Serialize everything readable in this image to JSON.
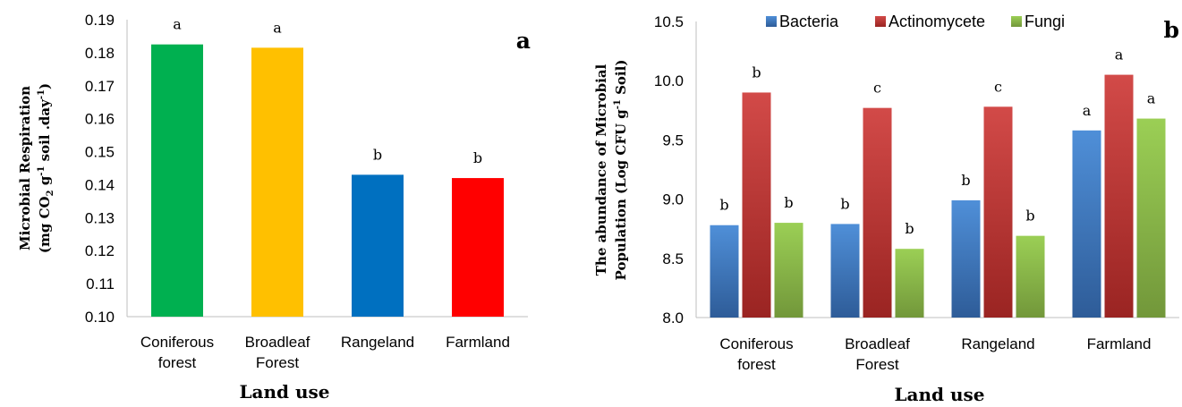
{
  "chart_data": [
    {
      "type": "bar",
      "panel_letter": "a",
      "categories": [
        [
          "Coniferous",
          "forest"
        ],
        [
          "Broadleaf",
          "Forest"
        ],
        [
          "Rangeland"
        ],
        [
          "Farmland"
        ]
      ],
      "values": [
        0.1825,
        0.1815,
        0.143,
        0.142
      ],
      "bar_colors": [
        "#00b050",
        "#ffc000",
        "#0070c0",
        "#ff0000"
      ],
      "letters": [
        "a",
        "a",
        "b",
        "b"
      ],
      "xlabel": "Land use",
      "ylabel_line1": "Microbial Respiration",
      "ylabel_line2_parts": [
        "(mg CO",
        "2",
        " g",
        "-1",
        " soil .day",
        "-1",
        ")"
      ],
      "ylim": [
        0.1,
        0.19
      ],
      "yticks": [
        "0.10",
        "0.11",
        "0.12",
        "0.13",
        "0.14",
        "0.15",
        "0.16",
        "0.17",
        "0.18",
        "0.19"
      ],
      "grid": false,
      "legend": "none"
    },
    {
      "type": "bar",
      "panel_letter": "b",
      "categories": [
        [
          "Coniferous",
          "forest"
        ],
        [
          "Broadleaf",
          "Forest"
        ],
        [
          "Rangeland"
        ],
        [
          "Farmland"
        ]
      ],
      "series": [
        {
          "name": "Bacteria",
          "values": [
            8.78,
            8.79,
            8.99,
            9.58
          ],
          "letters": [
            "b",
            "b",
            "b",
            "a"
          ],
          "color_light": "#4f8fd8",
          "color_dark": "#2e5c98"
        },
        {
          "name": "Actinomycete",
          "values": [
            9.9,
            9.77,
            9.78,
            10.05
          ],
          "letters": [
            "b",
            "c",
            "c",
            "a"
          ],
          "color_light": "#d24a48",
          "color_dark": "#9a2422"
        },
        {
          "name": "Fungi",
          "values": [
            8.8,
            8.58,
            8.69,
            9.68
          ],
          "letters": [
            "b",
            "b",
            "b",
            "a"
          ],
          "color_light": "#9bcf55",
          "color_dark": "#72973a"
        }
      ],
      "xlabel": "Land use",
      "ylabel_line1": "The abundance of Microbial",
      "ylabel_line2_parts": [
        "Population (Log CFU g",
        "-1",
        " Soil)"
      ],
      "ylim": [
        8.0,
        10.5
      ],
      "yticks": [
        "8.0",
        "8.5",
        "9.0",
        "9.5",
        "10.0",
        "10.5"
      ],
      "grid": false,
      "legend": "top"
    }
  ]
}
